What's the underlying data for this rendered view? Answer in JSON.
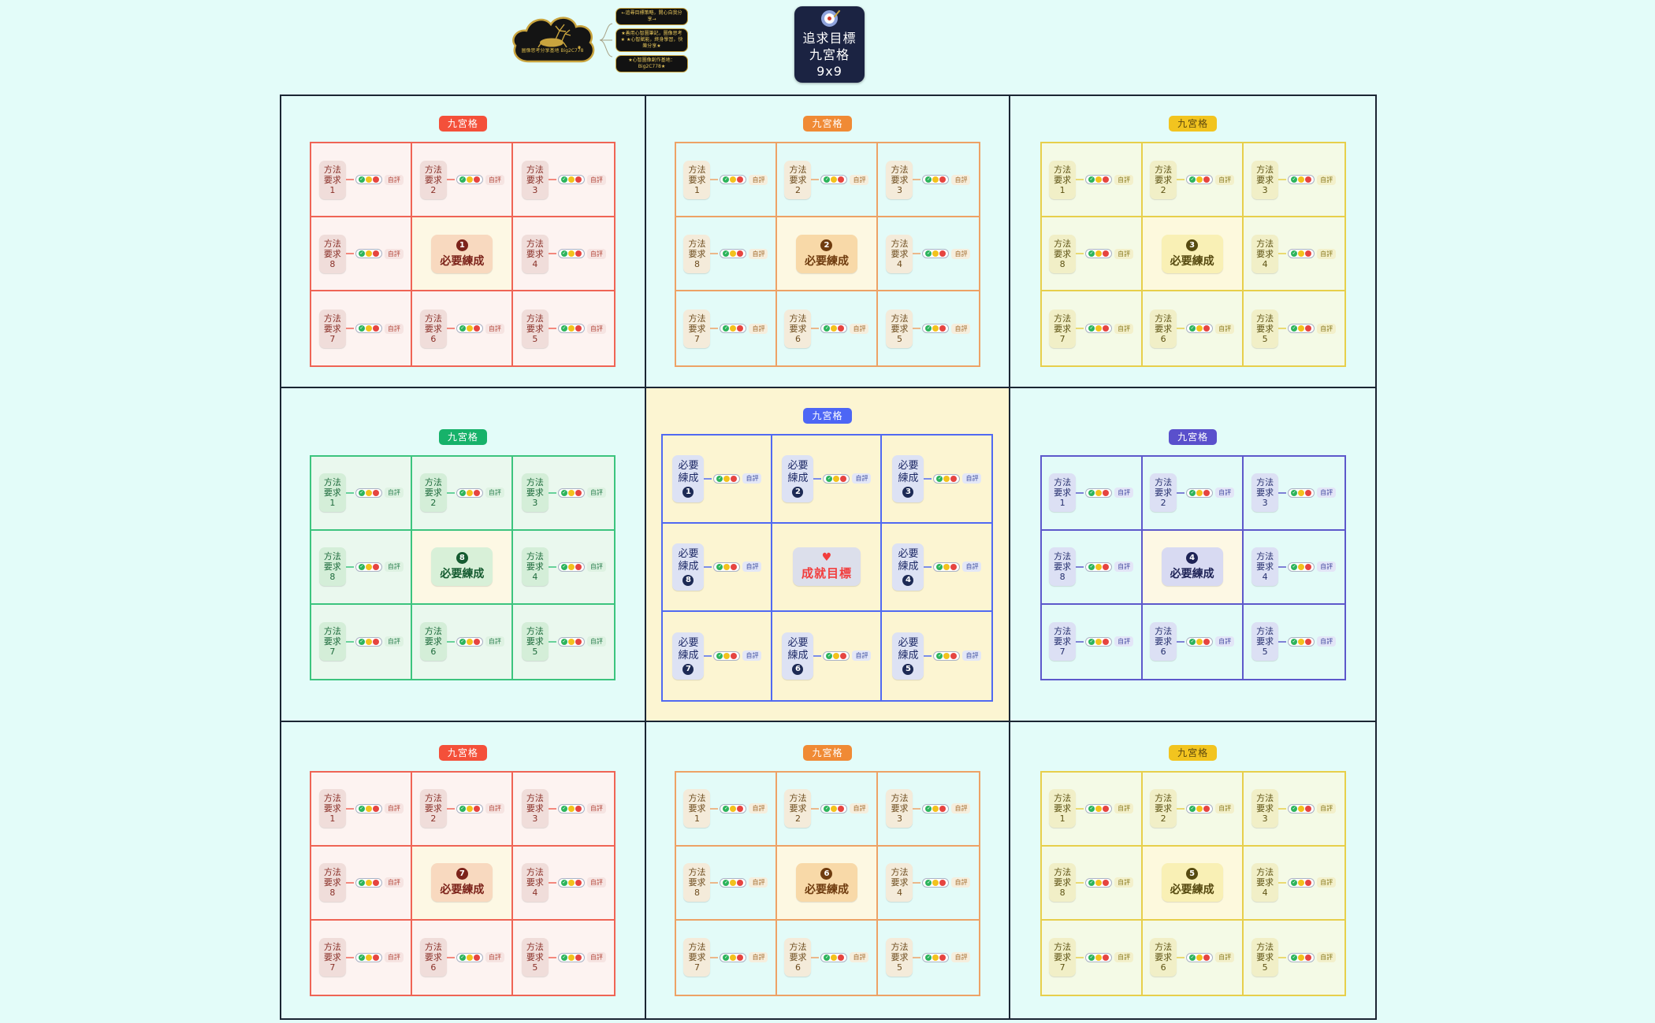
{
  "header": {
    "badge": {
      "lines": [
        "追求目標",
        "九宮格",
        "9x9"
      ],
      "bg": "#1b2342",
      "color": "#ffffff",
      "icon": "target-icon"
    },
    "logo": {
      "caption": "圖像思考分享基地 Big2C778",
      "notes": [
        "←追尋目標策略，開心自我分享→",
        "★善用心智圖筆記，圖像思考★ ★心智賦能，終身學習，快樂分享★",
        "★心智圖像創作基地：Big2C778★"
      ]
    }
  },
  "strings": {
    "tag": "九宮格",
    "self_eval": "自評",
    "method_label": "方法要求",
    "required_label": "必要練成",
    "goal_label": "成就目標",
    "heart": "♥",
    "cell_numbers": [
      1,
      2,
      3,
      8,
      null,
      4,
      7,
      6,
      5
    ]
  },
  "colors": {
    "page_bg": "#e3fcf9",
    "grid_line": "#1b2533",
    "light_green": "#2db45c",
    "light_yellow": "#f2c21d",
    "light_red": "#e64540"
  },
  "themes": {
    "red": {
      "border": "#ef6455",
      "tagBg": "#f4503a",
      "tagColor": "#ffffff",
      "cellBg": "#fdf3f1",
      "nodeBg": "#f0ddda",
      "nodeColor": "#8a3129",
      "evalBg": "#f6e4e2",
      "evalColor": "#b54a3e",
      "centerCellBg": "#fdf8e4",
      "centerNodeBg": "#f8d9bf",
      "centerNodeColor": "#7c231a",
      "badgeBg": "#7c231a",
      "badgeColor": "#ffffff"
    },
    "orange": {
      "border": "#eda266",
      "tagBg": "#f08a35",
      "tagColor": "#ffffff",
      "cellBg": "#e3fbf8",
      "nodeBg": "#f4ebda",
      "nodeColor": "#6f4e20",
      "evalBg": "#f6eedd",
      "evalColor": "#a2692a",
      "centerCellBg": "#fdf8e2",
      "centerNodeBg": "#f8d9a8",
      "centerNodeColor": "#6f3c0f",
      "badgeBg": "#6f3c0f",
      "badgeColor": "#ffffff"
    },
    "yellow": {
      "border": "#e7cf4b",
      "tagBg": "#f2c41f",
      "tagColor": "#5c470e",
      "cellBg": "#f4fae6",
      "nodeBg": "#f1efc7",
      "nodeColor": "#5e5314",
      "evalBg": "#f3f0cb",
      "evalColor": "#8a7a1e",
      "centerCellBg": "#fdf9dd",
      "centerNodeBg": "#f9f0b5",
      "centerNodeColor": "#564a10",
      "badgeBg": "#564a10",
      "badgeColor": "#ffffff"
    },
    "green": {
      "border": "#3cc47e",
      "tagBg": "#17b26a",
      "tagColor": "#ffffff",
      "cellBg": "#eaf8ee",
      "nodeBg": "#d4eed8",
      "nodeColor": "#1e6b3c",
      "evalBg": "#def2e2",
      "evalColor": "#2c8050",
      "centerCellBg": "#fdf8e4",
      "centerNodeBg": "#d8f0d8",
      "centerNodeColor": "#155b30",
      "badgeBg": "#155b30",
      "badgeColor": "#ffffff"
    },
    "blue": {
      "border": "#5069f2",
      "tagBg": "#4d66f5",
      "tagColor": "#ffffff",
      "cellBg": "#fcf5d2",
      "nodeBg": "#dde2f4",
      "nodeColor": "#1e2a66",
      "evalBg": "#e3e7f7",
      "evalColor": "#3a4a9e",
      "centerCellBg": "#fcf5d2",
      "centerNodeBg": "#dcdfeb",
      "centerNodeColor": "#f23d3d",
      "badgeBg": "#1d2a55",
      "badgeColor": "#ffffff"
    },
    "indigo": {
      "border": "#5d58cb",
      "tagBg": "#5a50cc",
      "tagColor": "#ffffff",
      "cellBg": "#e3fbf8",
      "nodeBg": "#dce0f4",
      "nodeColor": "#262f6e",
      "evalBg": "#e3e5f7",
      "evalColor": "#4348a0",
      "centerCellBg": "#fdf8e4",
      "centerNodeBg": "#d8daf2",
      "centerNodeColor": "#1e2356",
      "badgeBg": "#1e2356",
      "badgeColor": "#ffffff"
    }
  },
  "panels": [
    {
      "pos": "top-left",
      "theme": "red",
      "type": "method",
      "number": 1
    },
    {
      "pos": "top-middle",
      "theme": "orange",
      "type": "method",
      "number": 2
    },
    {
      "pos": "top-right",
      "theme": "yellow",
      "type": "method",
      "number": 3
    },
    {
      "pos": "middle-left",
      "theme": "green",
      "type": "method",
      "number": 8
    },
    {
      "pos": "center",
      "theme": "blue",
      "type": "goal"
    },
    {
      "pos": "middle-right",
      "theme": "indigo",
      "type": "method",
      "number": 4
    },
    {
      "pos": "bottom-left",
      "theme": "red",
      "type": "method",
      "number": 7
    },
    {
      "pos": "bottom-middle",
      "theme": "orange",
      "type": "method",
      "number": 6
    },
    {
      "pos": "bottom-right",
      "theme": "yellow",
      "type": "method",
      "number": 5
    }
  ]
}
